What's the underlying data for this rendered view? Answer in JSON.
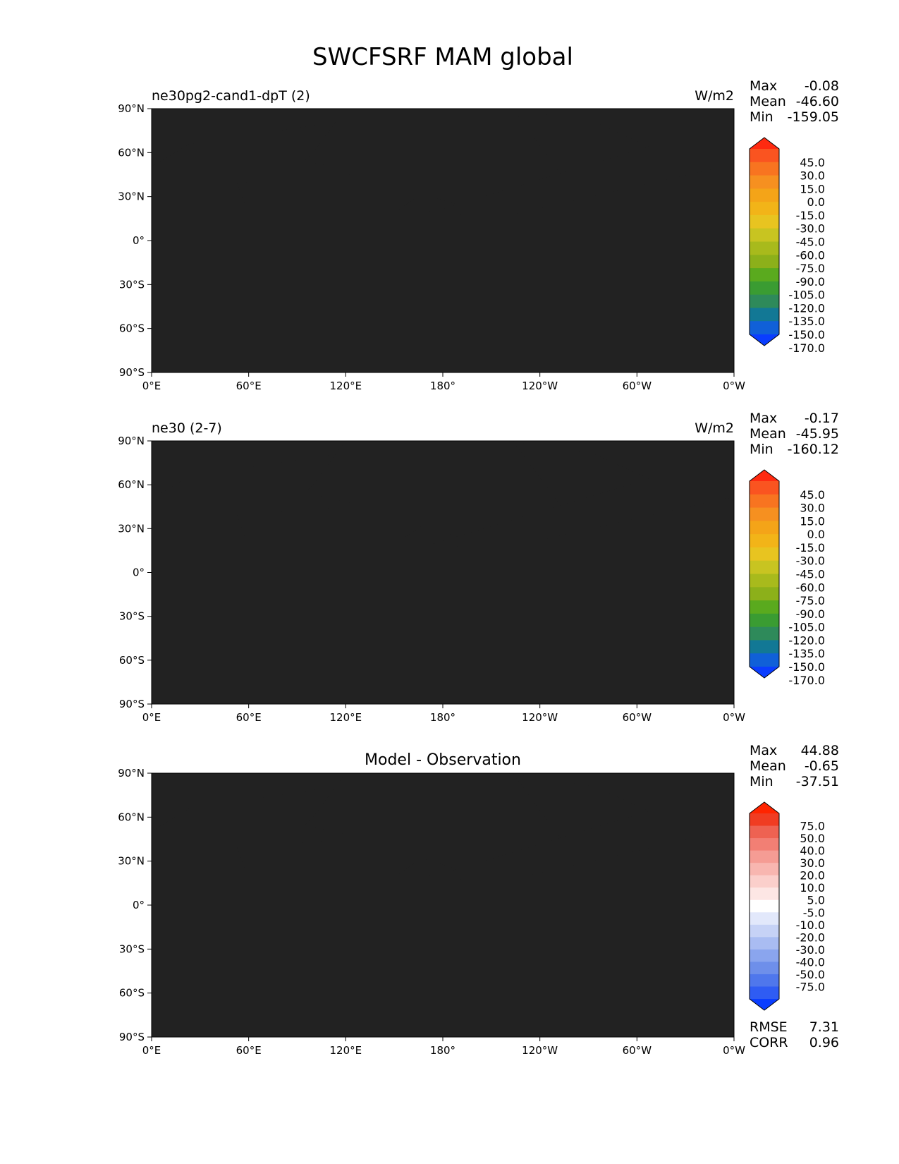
{
  "title": "SWCFSRF MAM global",
  "lat_ticks": [
    "90°N",
    "60°N",
    "30°N",
    "0°",
    "30°S",
    "60°S",
    "90°S"
  ],
  "lon_ticks": [
    "0°E",
    "60°E",
    "120°E",
    "180°",
    "120°W",
    "60°W",
    "0°W"
  ],
  "stat_labels": {
    "max": "Max",
    "mean": "Mean",
    "min": "Min",
    "rmse": "RMSE",
    "corr": "CORR"
  },
  "colors": {
    "model_scale": [
      "#0a3dff",
      "#1060d8",
      "#127895",
      "#2e8a5a",
      "#3a9c32",
      "#5aaa1e",
      "#8cb01a",
      "#a8ba1c",
      "#c8c421",
      "#e8c420",
      "#f2b418",
      "#f4a418",
      "#f69020",
      "#f87420",
      "#fa5420",
      "#ff2a10"
    ],
    "diff_scale": [
      "#0a3dff",
      "#2f5cf3",
      "#4f77ec",
      "#6e8fea",
      "#8aa5ee",
      "#a9bcf2",
      "#c6d2f6",
      "#e2e8fb",
      "#ffffff",
      "#fde6e4",
      "#fbcfcb",
      "#f8b6b0",
      "#f59c94",
      "#f27f74",
      "#ee6252",
      "#f03c22",
      "#ff2400"
    ]
  },
  "panels": [
    {
      "title_left": "ne30pg2-cand1-dpT (2)",
      "units": "W/m2",
      "stats": {
        "max": "-0.08",
        "mean": "-46.60",
        "min": "-159.05"
      },
      "colorbar_labels": [
        "45.0",
        "30.0",
        "15.0",
        "0.0",
        "-15.0",
        "-30.0",
        "-45.0",
        "-60.0",
        "-75.0",
        "-90.0",
        "-105.0",
        "-120.0",
        "-135.0",
        "-150.0",
        "-170.0"
      ]
    },
    {
      "title_left": "ne30 (2-7)",
      "units": "W/m2",
      "stats": {
        "max": "-0.17",
        "mean": "-45.95",
        "min": "-160.12"
      },
      "colorbar_labels": [
        "45.0",
        "30.0",
        "15.0",
        "0.0",
        "-15.0",
        "-30.0",
        "-45.0",
        "-60.0",
        "-75.0",
        "-90.0",
        "-105.0",
        "-120.0",
        "-135.0",
        "-150.0",
        "-170.0"
      ]
    },
    {
      "title_center": "Model - Observation",
      "stats": {
        "max": "44.88",
        "mean": "-0.65",
        "min": "-37.51"
      },
      "rmse": "7.31",
      "corr": "0.96",
      "colorbar_labels": [
        "75.0",
        "50.0",
        "40.0",
        "30.0",
        "20.0",
        "10.0",
        "5.0",
        "-5.0",
        "-10.0",
        "-20.0",
        "-30.0",
        "-40.0",
        "-50.0",
        "-75.0"
      ]
    }
  ]
}
